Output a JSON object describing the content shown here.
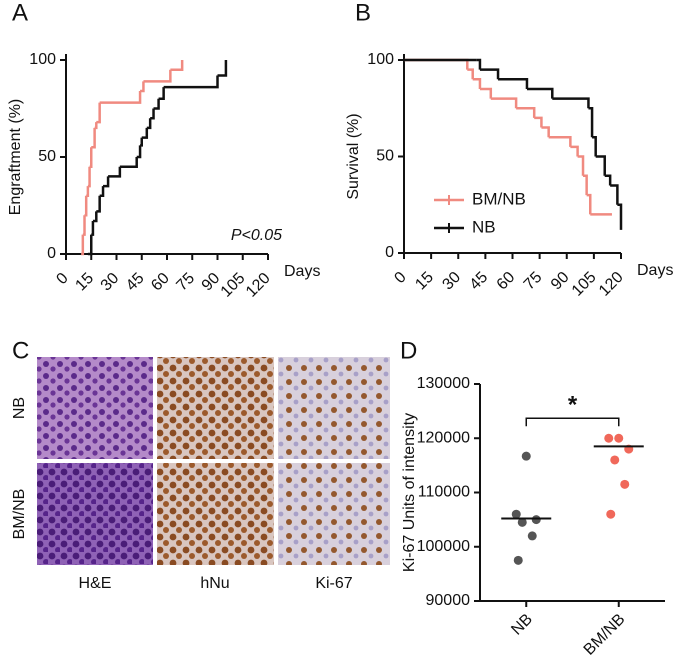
{
  "chart_data": [
    {
      "type": "step",
      "panel": "A",
      "y_label": "Engraftment (%)",
      "x_label": "Days",
      "annotation": "P<0.05",
      "xlim": [
        0,
        120
      ],
      "xticks": [
        0,
        15,
        30,
        45,
        60,
        75,
        90,
        105,
        120
      ],
      "ylim": [
        0,
        100
      ],
      "yticks": [
        0,
        50,
        100
      ],
      "series": [
        {
          "name": "BM/NB",
          "color": "#f08a80",
          "x": [
            9,
            10,
            11,
            12,
            13,
            14,
            15,
            17,
            18,
            20,
            44,
            46,
            62,
            69
          ],
          "values": [
            0,
            10,
            20,
            30,
            35,
            45,
            55,
            65,
            68,
            78,
            84,
            89,
            95,
            100
          ]
        },
        {
          "name": "NB",
          "color": "#111111",
          "x": [
            13,
            15,
            16,
            18,
            20,
            22,
            25,
            32,
            42,
            44,
            45,
            48,
            50,
            52,
            55,
            58,
            90,
            95
          ],
          "values": [
            0,
            10,
            17,
            22,
            30,
            35,
            40,
            45,
            50,
            56,
            60,
            65,
            70,
            75,
            80,
            86,
            92,
            100
          ]
        }
      ]
    },
    {
      "type": "step",
      "panel": "B",
      "y_label": "Survival (%)",
      "x_label": "Days",
      "legend": true,
      "xlim": [
        0,
        120
      ],
      "xticks": [
        0,
        15,
        30,
        45,
        60,
        75,
        90,
        105,
        120
      ],
      "ylim": [
        0,
        100
      ],
      "yticks": [
        0,
        50,
        100
      ],
      "series": [
        {
          "name": "BM/NB",
          "color": "#f08a80",
          "x": [
            0,
            35,
            38,
            42,
            48,
            62,
            72,
            76,
            80,
            92,
            96,
            99,
            101,
            103,
            115
          ],
          "values": [
            100,
            95,
            90,
            85,
            80,
            75,
            70,
            65,
            60,
            55,
            50,
            40,
            30,
            20,
            20
          ]
        },
        {
          "name": "NB",
          "color": "#111111",
          "x": [
            0,
            40,
            42,
            52,
            68,
            82,
            102,
            104,
            106,
            111,
            114,
            118,
            120
          ],
          "values": [
            100,
            100,
            95,
            90,
            85,
            80,
            75,
            60,
            50,
            40,
            35,
            25,
            12
          ]
        }
      ]
    },
    {
      "type": "dot",
      "panel": "D",
      "y_label": "Ki-67 Units of intensity",
      "annotation": "*",
      "categories": [
        "NB",
        "BM/NB"
      ],
      "colors": [
        "#555555",
        "#f0685a"
      ],
      "ylim": [
        90000,
        130000
      ],
      "yticks": [
        90000,
        100000,
        110000,
        120000,
        130000
      ],
      "points": [
        [
          116700,
          106000,
          105000,
          104500,
          102000,
          97500
        ],
        [
          120000,
          120000,
          118000,
          116000,
          111500,
          106000
        ]
      ],
      "medians": [
        105200,
        118500
      ]
    }
  ],
  "image_grid": {
    "panel": "C",
    "rows": [
      "NB",
      "BM/NB"
    ],
    "columns": [
      "H&E",
      "hNu",
      "Ki-67"
    ]
  }
}
